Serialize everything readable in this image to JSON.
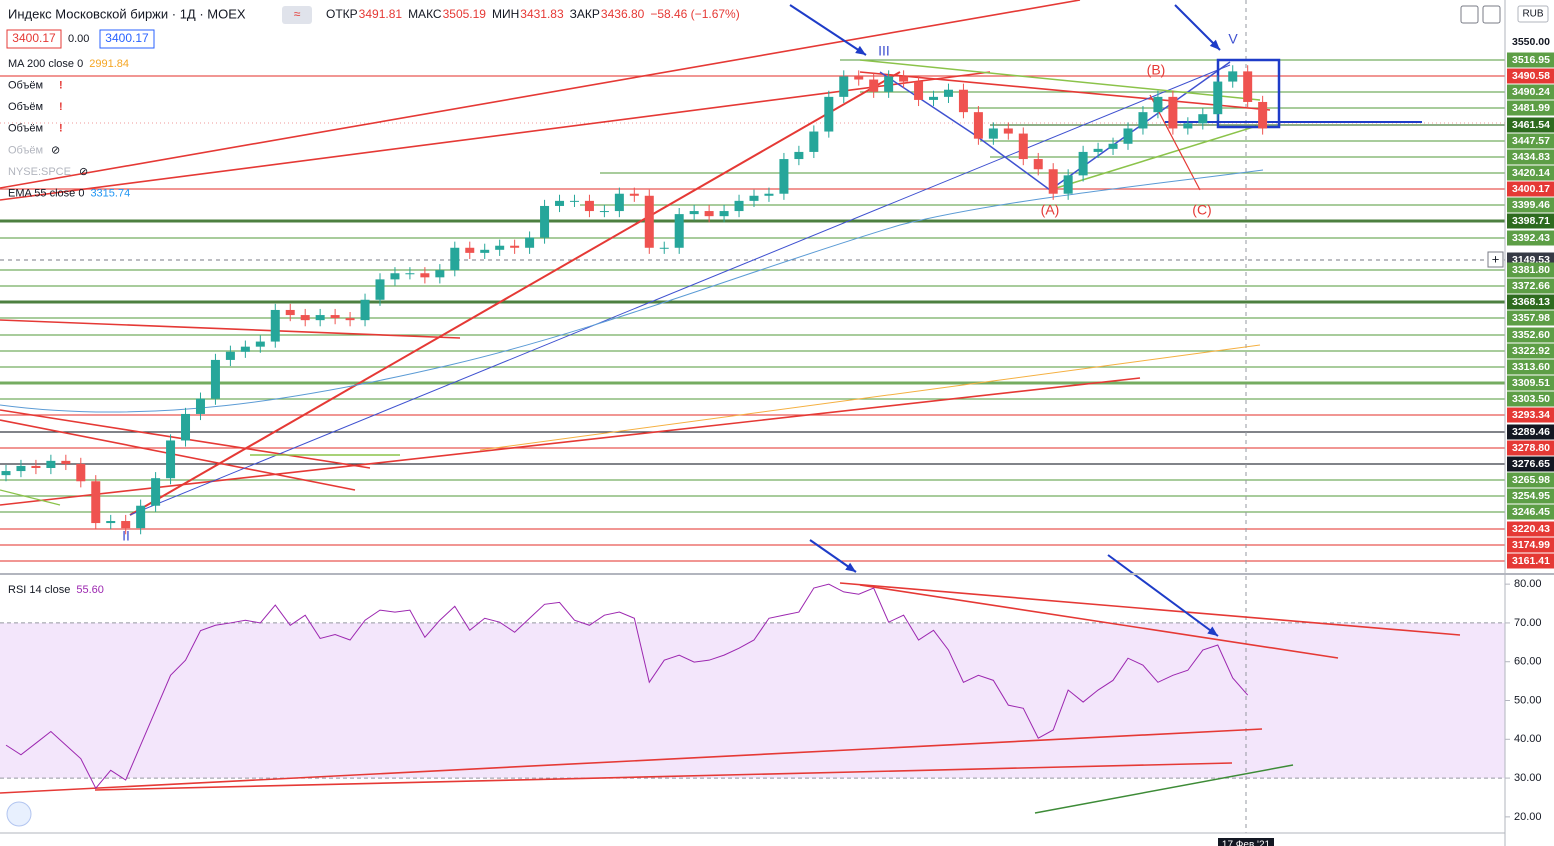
{
  "header": {
    "symbol": "Индекс Московской биржи · 1Д · MOEX",
    "ohlc": [
      {
        "label": "ОТКР",
        "value": "3491.81"
      },
      {
        "label": "МАКС",
        "value": "3505.19"
      },
      {
        "label": "МИН",
        "value": "3431.83"
      },
      {
        "label": "ЗАКР",
        "value": "3436.80"
      }
    ],
    "change": "−58.46 (−1.67%)",
    "price_boxes": [
      "3400.17",
      "0.00",
      "3400.17"
    ]
  },
  "legend": [
    {
      "name": "MA 200 close 0",
      "value": "2991.84",
      "color": "#f5a623"
    },
    {
      "name": "Объём"
    },
    {
      "name": "Объём"
    },
    {
      "name": "Объём"
    },
    {
      "name": "Объём",
      "hidden": true
    },
    {
      "name": "NYSE:SPCE",
      "hidden": true
    },
    {
      "name": "EMA 55 close 0",
      "value": "3315.74",
      "color": "#2196f3"
    }
  ],
  "price_axis": {
    "currency": "RUB",
    "range": [
      3030,
      3591
    ],
    "labels": [
      {
        "text": "3550.00",
        "color": "#ffffff"
      },
      {
        "text": "3516.95",
        "color": "#5d9e46"
      },
      {
        "text": "3490.58",
        "color": "#e53935"
      },
      {
        "text": "3490.24",
        "color": "#5d9e46"
      },
      {
        "text": "3481.99",
        "color": "#5d9e46"
      },
      {
        "text": "3461.54",
        "color": "#2e6b1f"
      },
      {
        "text": "3447.57",
        "color": "#5d9e46"
      },
      {
        "text": "3434.83",
        "color": "#5d9e46"
      },
      {
        "text": "3420.14",
        "color": "#5d9e46"
      },
      {
        "text": "3400.17",
        "color": "#e53935"
      },
      {
        "text": "3399.46",
        "color": "#5d9e46"
      },
      {
        "text": "3398.71",
        "color": "#2e6b1f"
      },
      {
        "text": "3392.43",
        "color": "#5d9e46"
      },
      {
        "text": "3149.53",
        "color": "#363a45"
      },
      {
        "text": "3381.80",
        "color": "#5d9e46"
      },
      {
        "text": "3372.66",
        "color": "#5d9e46"
      },
      {
        "text": "3368.13",
        "color": "#2e6b1f"
      },
      {
        "text": "3357.98",
        "color": "#5d9e46"
      },
      {
        "text": "3352.60",
        "color": "#5d9e46"
      },
      {
        "text": "3322.92",
        "color": "#5d9e46"
      },
      {
        "text": "3313.60",
        "color": "#5d9e46"
      },
      {
        "text": "3309.51",
        "color": "#5d9e46"
      },
      {
        "text": "3303.50",
        "color": "#5d9e46"
      },
      {
        "text": "3293.34",
        "color": "#e53935"
      },
      {
        "text": "3289.46",
        "color": "#131722"
      },
      {
        "text": "3278.80",
        "color": "#e53935"
      },
      {
        "text": "3276.65",
        "color": "#131722"
      },
      {
        "text": "3265.98",
        "color": "#5d9e46"
      },
      {
        "text": "3254.95",
        "color": "#5d9e46"
      },
      {
        "text": "3246.45",
        "color": "#5d9e46"
      },
      {
        "text": "3220.43",
        "color": "#e53935"
      },
      {
        "text": "3174.99",
        "color": "#e53935"
      },
      {
        "text": "3161.41",
        "color": "#e53935"
      }
    ]
  },
  "candles": [
    [
      3125,
      3135,
      3119,
      3129
    ],
    [
      3129,
      3140,
      3123,
      3134
    ],
    [
      3134,
      3140,
      3126,
      3132
    ],
    [
      3132,
      3145,
      3126,
      3139
    ],
    [
      3139,
      3145,
      3130,
      3136
    ],
    [
      3136,
      3142,
      3113,
      3119
    ],
    [
      3119,
      3125,
      3072,
      3078
    ],
    [
      3078,
      3086,
      3072,
      3080
    ],
    [
      3080,
      3086,
      3067,
      3073
    ],
    [
      3073,
      3101,
      3067,
      3095
    ],
    [
      3095,
      3128,
      3089,
      3122
    ],
    [
      3122,
      3165,
      3116,
      3159
    ],
    [
      3159,
      3191,
      3153,
      3185
    ],
    [
      3185,
      3206,
      3179,
      3200
    ],
    [
      3200,
      3244,
      3194,
      3238
    ],
    [
      3238,
      3252,
      3232,
      3246
    ],
    [
      3246,
      3257,
      3240,
      3251
    ],
    [
      3251,
      3262,
      3245,
      3256
    ],
    [
      3256,
      3293,
      3250,
      3287
    ],
    [
      3287,
      3293,
      3276,
      3282
    ],
    [
      3282,
      3288,
      3271,
      3277
    ],
    [
      3277,
      3288,
      3271,
      3282
    ],
    [
      3282,
      3288,
      3273,
      3279
    ],
    [
      3279,
      3285,
      3271,
      3277
    ],
    [
      3277,
      3303,
      3271,
      3297
    ],
    [
      3297,
      3323,
      3291,
      3317
    ],
    [
      3317,
      3329,
      3311,
      3323
    ],
    [
      3323,
      3329,
      3317,
      3323
    ],
    [
      3323,
      3329,
      3313,
      3319
    ],
    [
      3319,
      3332,
      3313,
      3326
    ],
    [
      3326,
      3354,
      3320,
      3348
    ],
    [
      3348,
      3354,
      3337,
      3343
    ],
    [
      3343,
      3352,
      3337,
      3346
    ],
    [
      3346,
      3356,
      3340,
      3350
    ],
    [
      3350,
      3356,
      3342,
      3348
    ],
    [
      3348,
      3364,
      3342,
      3358
    ],
    [
      3358,
      3395,
      3352,
      3389
    ],
    [
      3389,
      3400,
      3383,
      3394
    ],
    [
      3394,
      3400,
      3388,
      3394
    ],
    [
      3394,
      3400,
      3378,
      3384
    ],
    [
      3384,
      3390,
      3378,
      3384
    ],
    [
      3384,
      3407,
      3378,
      3401
    ],
    [
      3401,
      3407,
      3393,
      3399
    ],
    [
      3399,
      3405,
      3342,
      3348
    ],
    [
      3348,
      3354,
      3342,
      3348
    ],
    [
      3348,
      3387,
      3342,
      3381
    ],
    [
      3381,
      3390,
      3375,
      3384
    ],
    [
      3384,
      3390,
      3373,
      3379
    ],
    [
      3379,
      3390,
      3373,
      3384
    ],
    [
      3384,
      3400,
      3378,
      3394
    ],
    [
      3394,
      3405,
      3388,
      3399
    ],
    [
      3399,
      3407,
      3393,
      3401
    ],
    [
      3401,
      3441,
      3395,
      3435
    ],
    [
      3435,
      3448,
      3429,
      3442
    ],
    [
      3442,
      3468,
      3436,
      3462
    ],
    [
      3462,
      3502,
      3456,
      3496
    ],
    [
      3496,
      3522,
      3490,
      3516
    ],
    [
      3516,
      3522,
      3507,
      3513
    ],
    [
      3513,
      3519,
      3495,
      3501
    ],
    [
      3501,
      3522,
      3495,
      3516
    ],
    [
      3516,
      3522,
      3505,
      3511
    ],
    [
      3511,
      3517,
      3487,
      3493
    ],
    [
      3493,
      3502,
      3487,
      3496
    ],
    [
      3496,
      3509,
      3490,
      3503
    ],
    [
      3503,
      3509,
      3475,
      3481
    ],
    [
      3481,
      3487,
      3449,
      3455
    ],
    [
      3455,
      3471,
      3449,
      3465
    ],
    [
      3465,
      3471,
      3454,
      3460
    ],
    [
      3460,
      3466,
      3429,
      3435
    ],
    [
      3435,
      3441,
      3419,
      3425
    ],
    [
      3425,
      3431,
      3395,
      3401
    ],
    [
      3401,
      3425,
      3395,
      3419
    ],
    [
      3419,
      3448,
      3413,
      3442
    ],
    [
      3442,
      3451,
      3436,
      3445
    ],
    [
      3445,
      3456,
      3439,
      3450
    ],
    [
      3450,
      3471,
      3444,
      3465
    ],
    [
      3465,
      3487,
      3459,
      3481
    ],
    [
      3481,
      3502,
      3475,
      3496
    ],
    [
      3496,
      3502,
      3459,
      3465
    ],
    [
      3465,
      3476,
      3459,
      3470
    ],
    [
      3470,
      3485,
      3464,
      3479
    ],
    [
      3479,
      3517,
      3473,
      3511
    ],
    [
      3511,
      3527,
      3505,
      3521
    ],
    [
      3521,
      3527,
      3485,
      3491
    ],
    [
      3491,
      3497,
      3459,
      3465
    ]
  ],
  "annotations": [
    {
      "text": "III",
      "color": "#3f51d0"
    },
    {
      "text": "II",
      "color": "#3f51d0"
    },
    {
      "text": "V",
      "color": "#3f51d0"
    },
    {
      "text": "(B)",
      "color": "#e53935"
    },
    {
      "text": "(A)",
      "color": "#e53935"
    },
    {
      "text": "(C)",
      "color": "#e53935"
    }
  ],
  "rsi": {
    "title": "RSI 14 close",
    "value": "55.60",
    "range": [
      16.1,
      82.1
    ],
    "band": [
      30,
      70
    ],
    "ticks": [
      {
        "value": 80,
        "label": "80.00"
      },
      {
        "value": 70,
        "label": "70.00"
      },
      {
        "value": 60,
        "label": "60.00"
      },
      {
        "value": 50,
        "label": "50.00"
      },
      {
        "value": 40,
        "label": "40.00"
      },
      {
        "value": 30,
        "label": "30.00"
      },
      {
        "value": 20,
        "label": "20.00"
      }
    ],
    "values": [
      38.5,
      36,
      39,
      42,
      38.5,
      35,
      27.4,
      32,
      29.5,
      38.5,
      47.5,
      56.5,
      60.4,
      68,
      69.4,
      70,
      70.7,
      70,
      74.6,
      69.4,
      72,
      66,
      67,
      65.6,
      70.7,
      73.3,
      72.8,
      73.3,
      66.3,
      70.7,
      74.3,
      68.1,
      71.2,
      70.2,
      67.6,
      71.2,
      74.8,
      75.3,
      70.7,
      69.4,
      72,
      72.8,
      71.2,
      54.7,
      60.4,
      61.7,
      59.9,
      60.4,
      61.7,
      63.5,
      65.6,
      71.2,
      72,
      72.8,
      79,
      80,
      78,
      77.4,
      79,
      70.2,
      72,
      65.6,
      68.1,
      63,
      54.7,
      56.5,
      55.2,
      48.8,
      48,
      40.3,
      42.4,
      52.7,
      49.6,
      52.7,
      55.2,
      60.9,
      59.1,
      54.7,
      56.5,
      57.8,
      63,
      64.3,
      55.8,
      51.4
    ]
  },
  "time_axis": {
    "cursor_label": "17 Фев '21"
  }
}
